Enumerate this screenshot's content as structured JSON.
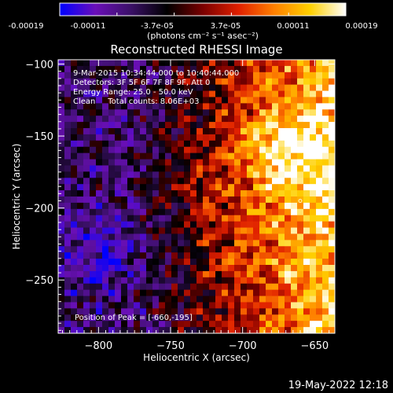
{
  "chart_data": {
    "type": "heatmap",
    "title": "Reconstructed RHESSI Image",
    "xlabel": "Heliocentric X (arcsec)",
    "ylabel": "Heliocentric Y (arcsec)",
    "xlim": [
      -828,
      -636
    ],
    "ylim": [
      -287,
      -97
    ],
    "xticks": [
      -800,
      -750,
      -700,
      -650
    ],
    "yticks": [
      -100,
      -150,
      -200,
      -250
    ],
    "colorbar": {
      "ticks": [
        "-0.00019",
        "-0.00011",
        "-3.7e-05",
        "3.7e-05",
        "0.00011",
        "0.00019"
      ],
      "range": [
        -0.00019,
        0.00019
      ],
      "units": "(photons cm⁻² s⁻¹ asec⁻²)",
      "colormap": [
        "#0000ff",
        "#6a0fb8",
        "#3a1066",
        "#000000",
        "#7a0000",
        "#e02000",
        "#ff8000",
        "#ffd000",
        "#ffffff"
      ]
    },
    "annotations": [
      "9-Mar-2015 10:34:44.000 to 10:40:44.000",
      "Detectors: 3F 5F 6F 7F 8F 9F, Att 0",
      "Energy Range: 25.0 - 50.0 keV",
      "Clean     Total counts: 8.06E+03"
    ],
    "peak_label": "Position of Peak = [-660,-195]",
    "peak_position": [
      -660,
      -195
    ]
  },
  "footer": {
    "timestamp": "19-May-2022 12:18"
  }
}
